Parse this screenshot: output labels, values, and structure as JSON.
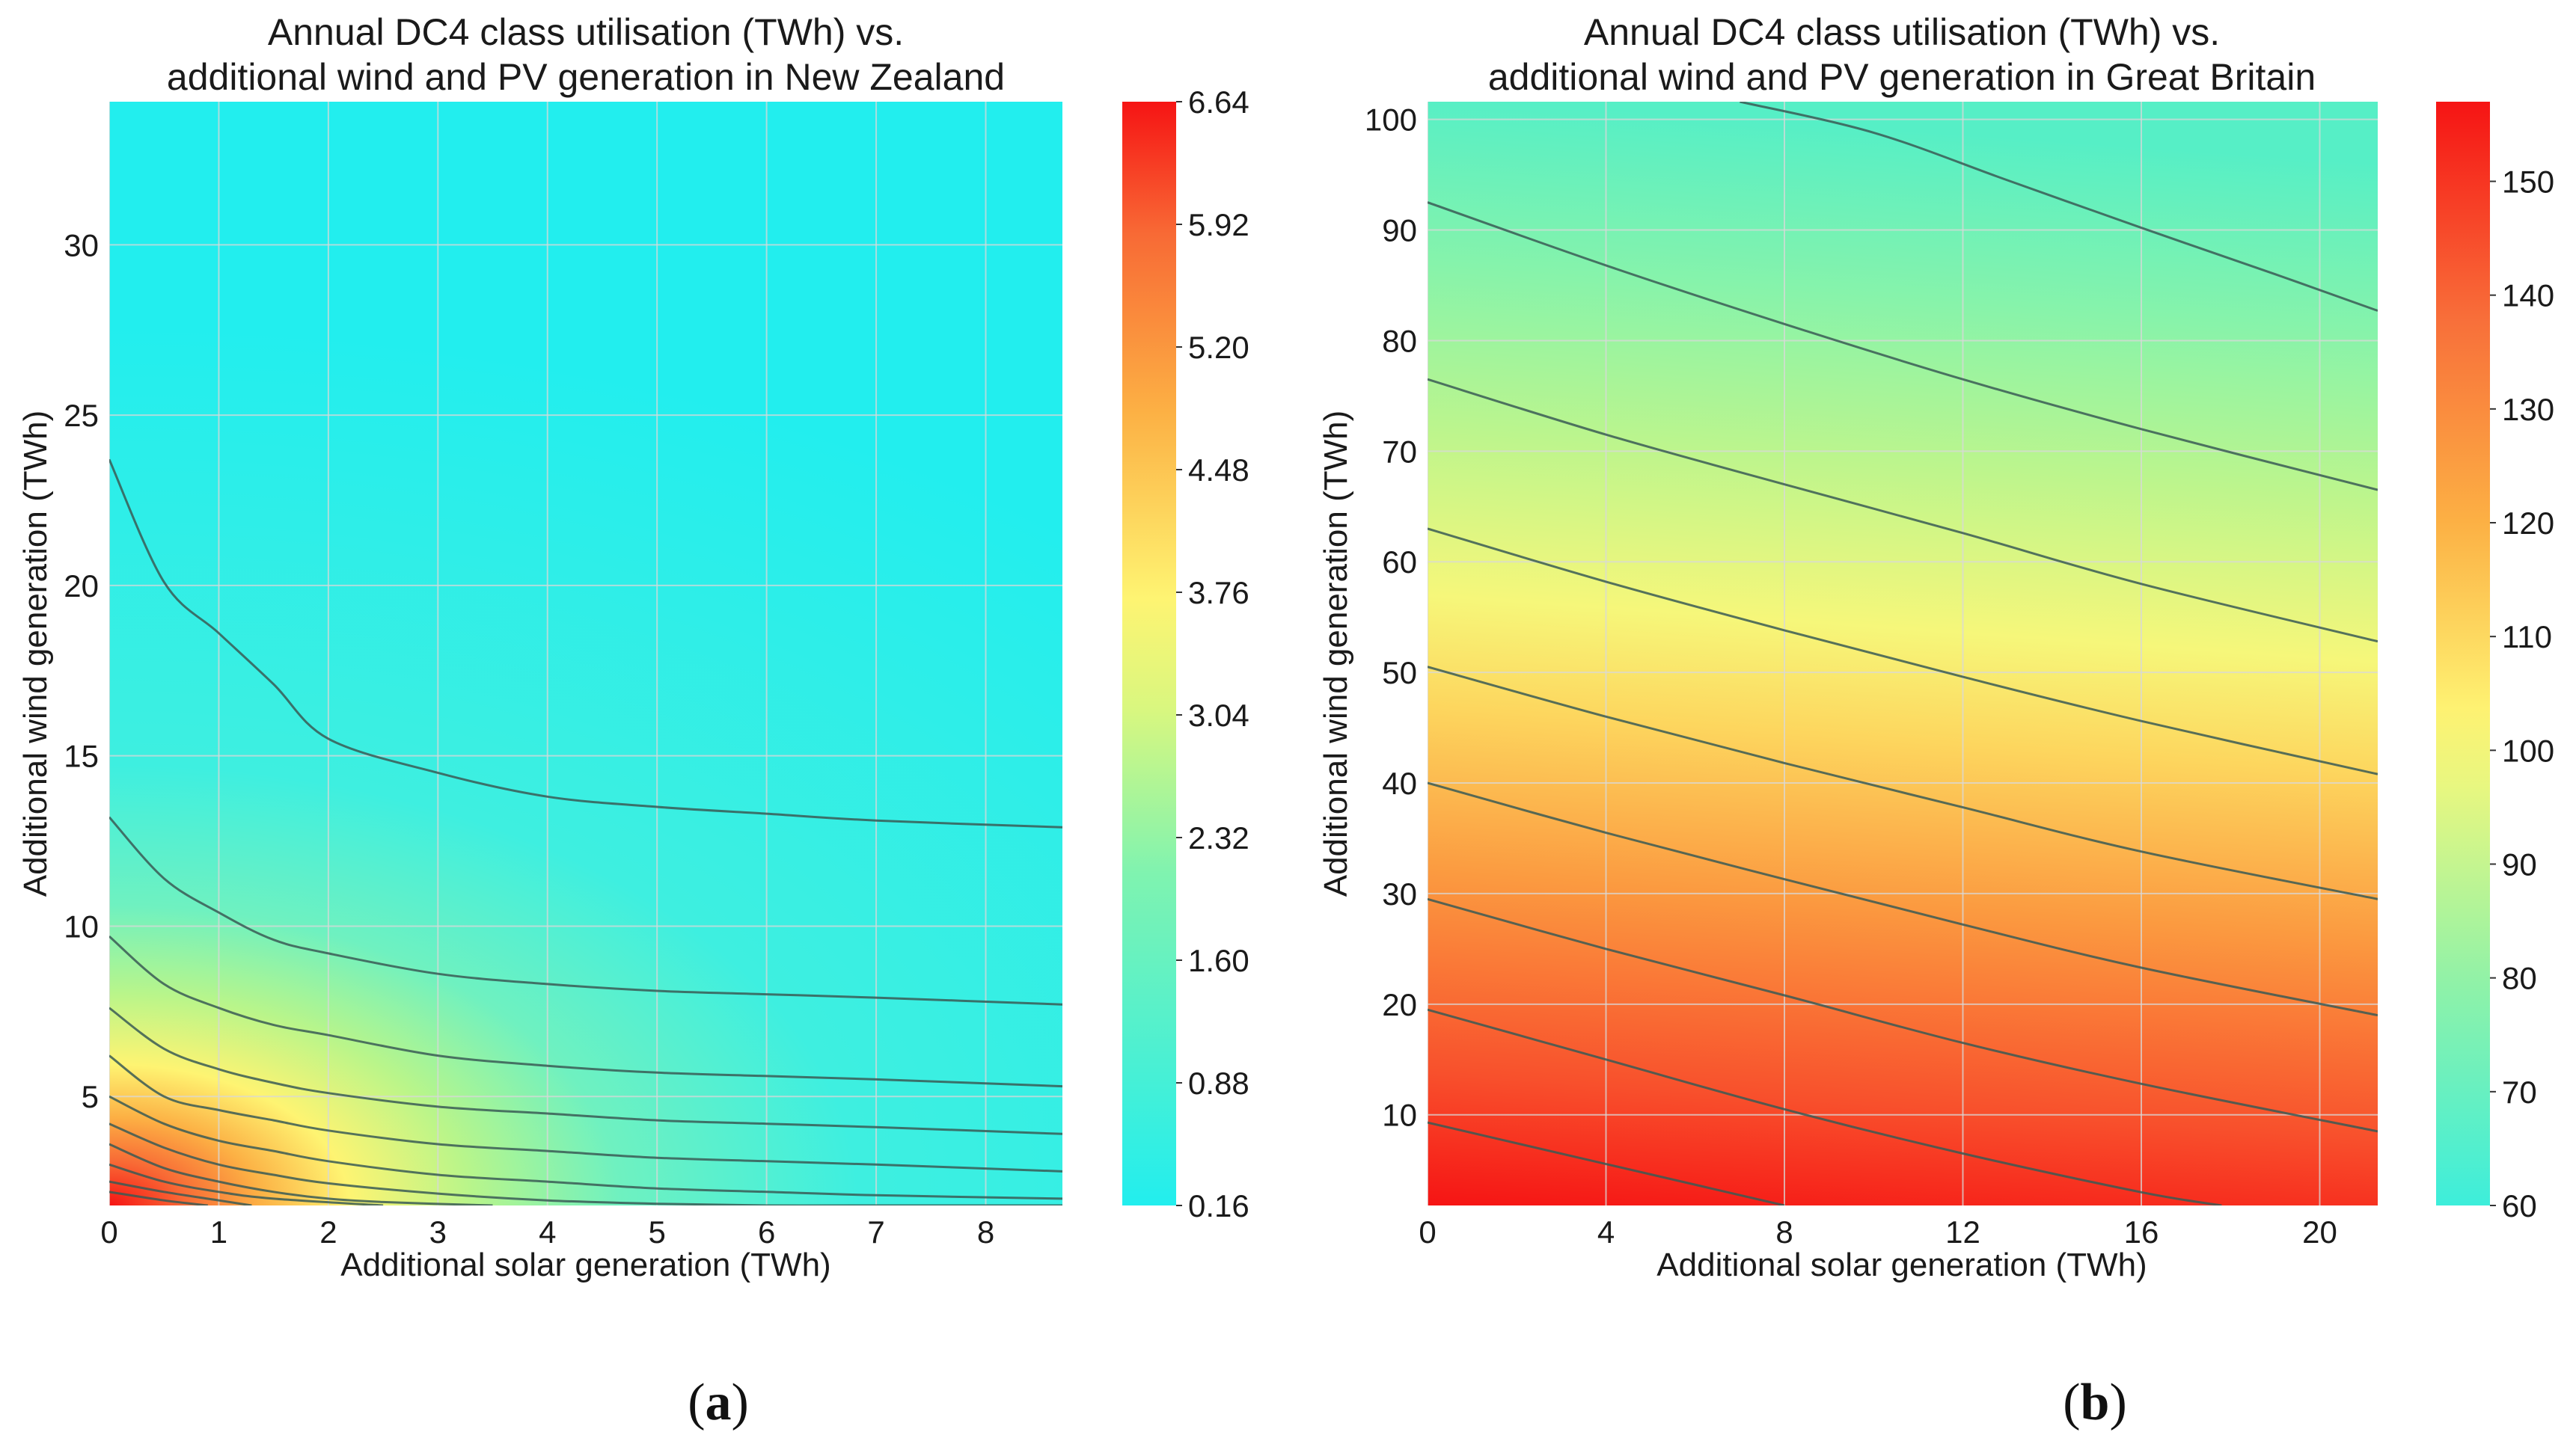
{
  "chart_data": [
    {
      "type": "contour",
      "panel_label": "a",
      "title_line1": "Annual DC4 class utilisation (TWh) vs.",
      "title_line2": "additional wind and PV generation in New Zealand",
      "xlabel": "Additional solar generation (TWh)",
      "ylabel": "Additional wind generation (TWh)",
      "xlim": [
        0,
        8.7
      ],
      "ylim": [
        1.8,
        34.2
      ],
      "xticks": [
        0,
        1,
        2,
        3,
        4,
        5,
        6,
        7,
        8
      ],
      "yticks": [
        5,
        10,
        15,
        20,
        25,
        30
      ],
      "colorbar": {
        "range": [
          0.16,
          6.64
        ],
        "ticks": [
          "0.16",
          "0.88",
          "1.60",
          "2.32",
          "3.04",
          "3.76",
          "4.48",
          "5.20",
          "5.92",
          "6.64"
        ]
      },
      "contours": [
        {
          "x": [
            0,
            0.5,
            1,
            1.5,
            2,
            3,
            4,
            5,
            6,
            7,
            8.7
          ],
          "y": [
            23.7,
            20.1,
            18.6,
            17.1,
            15.5,
            14.5,
            13.8,
            13.5,
            13.3,
            13.1,
            12.9
          ]
        },
        {
          "x": [
            0,
            0.5,
            1,
            1.5,
            2,
            3,
            4,
            5,
            6,
            7,
            8.7
          ],
          "y": [
            13.2,
            11.4,
            10.4,
            9.6,
            9.2,
            8.6,
            8.3,
            8.1,
            8.0,
            7.9,
            7.7
          ]
        },
        {
          "x": [
            0,
            0.5,
            1,
            1.5,
            2,
            3,
            4,
            5,
            6,
            7,
            8.7
          ],
          "y": [
            9.7,
            8.3,
            7.6,
            7.1,
            6.8,
            6.2,
            5.9,
            5.7,
            5.6,
            5.5,
            5.3
          ]
        },
        {
          "x": [
            0,
            0.5,
            1,
            1.5,
            2,
            3,
            4,
            5,
            6,
            7,
            8.7
          ],
          "y": [
            7.6,
            6.4,
            5.8,
            5.4,
            5.1,
            4.7,
            4.5,
            4.3,
            4.2,
            4.1,
            3.9
          ]
        },
        {
          "x": [
            0,
            0.5,
            1,
            1.5,
            2,
            3,
            4,
            5,
            6,
            7,
            8.7
          ],
          "y": [
            6.2,
            5.0,
            4.6,
            4.3,
            4.0,
            3.6,
            3.4,
            3.2,
            3.1,
            3.0,
            2.8
          ]
        },
        {
          "x": [
            0,
            0.5,
            1,
            1.5,
            2,
            3,
            4,
            5,
            6,
            7,
            8.7
          ],
          "y": [
            5.0,
            4.2,
            3.7,
            3.4,
            3.1,
            2.7,
            2.5,
            2.3,
            2.2,
            2.1,
            2.0
          ]
        },
        {
          "x": [
            0,
            0.5,
            1,
            1.5,
            2,
            3,
            4,
            5,
            6,
            7,
            8.7
          ],
          "y": [
            4.2,
            3.5,
            3.0,
            2.7,
            2.45,
            2.15,
            1.95,
            1.85,
            1.8,
            1.8,
            1.8
          ]
        },
        {
          "x": [
            0,
            0.5,
            1,
            1.5,
            2,
            2.5,
            3.5
          ],
          "y": [
            3.6,
            2.9,
            2.5,
            2.2,
            2.0,
            1.9,
            1.8
          ]
        },
        {
          "x": [
            0,
            0.5,
            1,
            1.5,
            2.5
          ],
          "y": [
            3.0,
            2.5,
            2.2,
            2.0,
            1.8
          ]
        },
        {
          "x": [
            0,
            0.5,
            1,
            1.3
          ],
          "y": [
            2.5,
            2.2,
            1.95,
            1.8
          ]
        },
        {
          "x": [
            0,
            0.5,
            0.9
          ],
          "y": [
            2.2,
            1.95,
            1.8
          ]
        }
      ]
    },
    {
      "type": "contour",
      "panel_label": "b",
      "title_line1": "Annual DC4 class utilisation (TWh) vs.",
      "title_line2": "additional wind and PV generation in Great Britain",
      "xlabel": "Additional solar generation (TWh)",
      "ylabel": "Additional wind generation (TWh)",
      "xlim": [
        0,
        21.3
      ],
      "ylim": [
        1.8,
        101.6
      ],
      "xticks": [
        0,
        4,
        8,
        12,
        16,
        20
      ],
      "yticks": [
        10,
        20,
        30,
        40,
        50,
        60,
        70,
        80,
        90,
        100
      ],
      "colorbar": {
        "range": [
          60,
          157
        ],
        "ticks": [
          "60",
          "70",
          "80",
          "90",
          "100",
          "110",
          "120",
          "130",
          "140",
          "150"
        ]
      },
      "contours": [
        {
          "x": [
            0,
            8
          ],
          "y": [
            9.3,
            1.8
          ]
        },
        {
          "x": [
            0,
            4,
            8,
            12,
            16,
            17.8
          ],
          "y": [
            19.5,
            15.0,
            10.5,
            6.5,
            3.0,
            1.8
          ]
        },
        {
          "x": [
            0,
            4,
            8,
            12,
            16,
            21.3
          ],
          "y": [
            29.5,
            25.0,
            20.8,
            16.5,
            12.8,
            8.5
          ]
        },
        {
          "x": [
            0,
            4,
            8,
            12,
            16,
            21.3
          ],
          "y": [
            40.0,
            35.5,
            31.3,
            27.2,
            23.3,
            19.0
          ]
        },
        {
          "x": [
            0,
            4,
            8,
            12,
            16,
            21.3
          ],
          "y": [
            50.5,
            46.0,
            41.8,
            37.8,
            33.8,
            29.5
          ]
        },
        {
          "x": [
            0,
            4,
            8,
            12,
            16,
            21.3
          ],
          "y": [
            63.0,
            58.2,
            53.8,
            49.6,
            45.6,
            40.8
          ]
        },
        {
          "x": [
            0,
            4,
            8,
            12,
            16,
            21.3
          ],
          "y": [
            76.5,
            71.5,
            67.0,
            62.6,
            58.0,
            52.8
          ]
        },
        {
          "x": [
            0,
            4,
            8,
            12,
            16,
            21.3
          ],
          "y": [
            92.5,
            86.8,
            81.5,
            76.5,
            72.0,
            66.5
          ]
        },
        {
          "x": [
            7,
            10,
            13,
            16,
            19,
            21.3
          ],
          "y": [
            101.6,
            98.8,
            94.5,
            90.2,
            86.0,
            82.7
          ]
        }
      ]
    }
  ]
}
